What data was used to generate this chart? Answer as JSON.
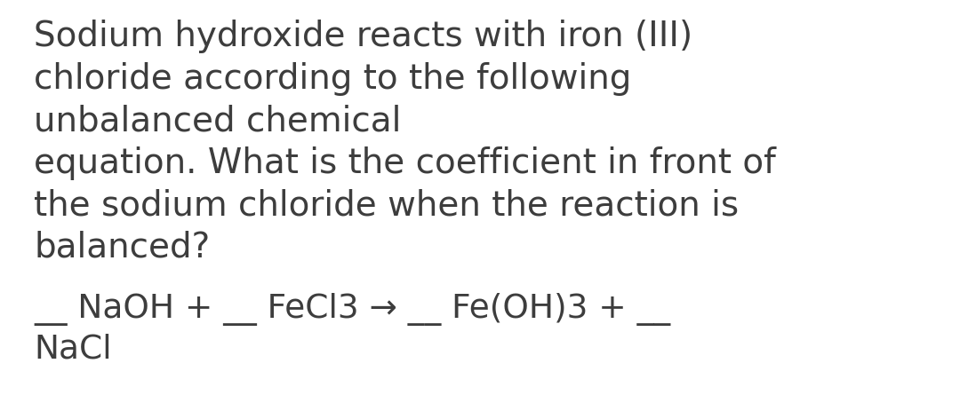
{
  "background_color": "#ffffff",
  "text_color": "#3d3d3d",
  "paragraph_text": "Sodium hydroxide reacts with iron (III)\nchloride according to the following\nunbalanced chemical\nequation. What is the coefficient in front of\nthe sodium chloride when the reaction is\nbalanced?",
  "equation_line1": "__ NaOH + __ FeCl3 → __ Fe(OH)3 + __",
  "equation_line2": "NaCl",
  "font_size_para": 28,
  "font_size_eq": 27,
  "fig_width": 10.8,
  "fig_height": 4.54,
  "dpi": 100
}
